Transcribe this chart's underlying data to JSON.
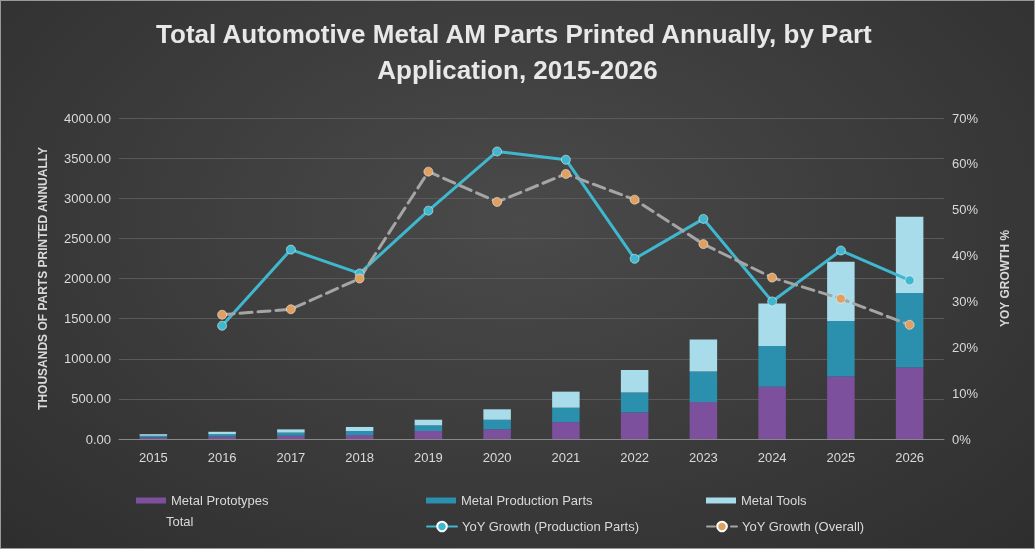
{
  "chart_data": {
    "type": "bar",
    "title": "Total Automotive Metal AM Parts Printed Annually, by Part Application, 2015-2026",
    "categories": [
      "2015",
      "2016",
      "2017",
      "2018",
      "2019",
      "2020",
      "2021",
      "2022",
      "2023",
      "2024",
      "2025",
      "2026"
    ],
    "stacked": true,
    "series": [
      {
        "name": "Metal Prototypes",
        "color": "#7d509e",
        "values": [
          20,
          30,
          40,
          50,
          100,
          120,
          210,
          330,
          460,
          650,
          780,
          890
        ]
      },
      {
        "name": "Metal Production Parts",
        "color": "#2b8fae",
        "values": [
          20,
          30,
          40,
          50,
          70,
          120,
          180,
          250,
          380,
          510,
          690,
          930
        ]
      },
      {
        "name": "Metal Tools",
        "color": "#a9dcea",
        "values": [
          20,
          30,
          40,
          50,
          70,
          130,
          200,
          280,
          400,
          530,
          740,
          950
        ]
      },
      {
        "name": "YoY Growth (Production Parts)",
        "type": "line",
        "axis": "y2",
        "color": "#3fb8cf",
        "marker": "circle",
        "line_style": "solid",
        "values": [
          null,
          24.7,
          41.3,
          36.1,
          49.8,
          62.7,
          60.9,
          39.3,
          48.0,
          30.0,
          41.1,
          34.6
        ]
      },
      {
        "name": "YoY Growth (Overall)",
        "type": "line",
        "axis": "y2",
        "color": "#e0a062",
        "marker": "circle",
        "line_style": "dashed",
        "values": [
          null,
          27.1,
          28.3,
          35.0,
          58.3,
          51.7,
          57.8,
          52.2,
          42.5,
          35.2,
          30.6,
          24.9
        ]
      }
    ],
    "ylabel": "THOUSANDS OF PARTS PRINTED ANNUALLY",
    "y2label": "YOY GROWTH %",
    "ylim": [
      0,
      4000
    ],
    "yticks": [
      {
        "value": 0,
        "label": "0.00"
      },
      {
        "value": 500,
        "label": "500.00"
      },
      {
        "value": 1000,
        "label": "1000.00"
      },
      {
        "value": 1500,
        "label": "1500.00"
      },
      {
        "value": 2000,
        "label": "2000.00"
      },
      {
        "value": 2500,
        "label": "2500.00"
      },
      {
        "value": 3000,
        "label": "3000.00"
      },
      {
        "value": 3500,
        "label": "3500.00"
      },
      {
        "value": 4000,
        "label": "4000.00"
      }
    ],
    "y2lim": [
      0,
      70
    ],
    "y2ticks": [
      {
        "value": 0,
        "label": "0%"
      },
      {
        "value": 10,
        "label": "10%"
      },
      {
        "value": 20,
        "label": "20%"
      },
      {
        "value": 30,
        "label": "30%"
      },
      {
        "value": 40,
        "label": "40%"
      },
      {
        "value": 50,
        "label": "50%"
      },
      {
        "value": 60,
        "label": "60%"
      },
      {
        "value": 70,
        "label": "70%"
      }
    ],
    "grid": "y",
    "legend": "bottom",
    "annotations": [
      "Total"
    ]
  }
}
